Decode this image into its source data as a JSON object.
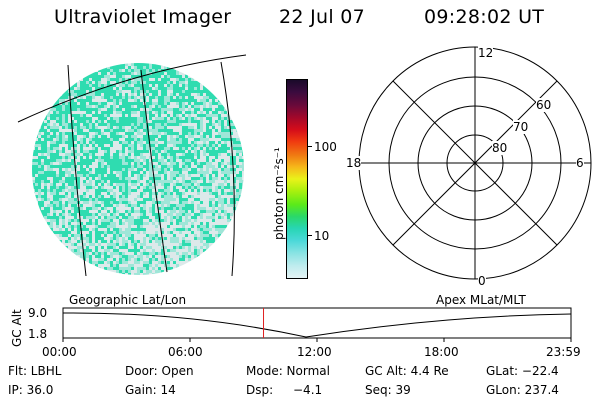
{
  "header": {
    "instrument": "Ultraviolet Imager",
    "date": "22 Jul 07",
    "time": "09:28:02 UT"
  },
  "image_panel": {
    "colors": {
      "dense": "#2fdcb0",
      "mid": "#9fe6d8",
      "light": "#dde9ea",
      "grid": "#000000"
    }
  },
  "colorbar": {
    "unit_label": "photon cm⁻²s⁻¹",
    "ticks": [
      "100",
      "10"
    ],
    "scale": "log",
    "colors": [
      "#1a0a2a",
      "#3a0b3e",
      "#6b0a3a",
      "#a3082a",
      "#d40c1a",
      "#f03a10",
      "#f07a12",
      "#f6b81a",
      "#eaf21a",
      "#aaf00e",
      "#5aea1a",
      "#2ad86a",
      "#28d6b4",
      "#4ad8d8",
      "#8ee4e4",
      "#c0ecee",
      "#e4f2f4"
    ]
  },
  "polar_plot": {
    "mlt_labels": {
      "top": "12",
      "right": "6",
      "bottom": "0",
      "left": "18"
    },
    "lat_labels": [
      "60",
      "70",
      "80"
    ]
  },
  "altitude_plot": {
    "title_left": "Geographic Lat/Lon",
    "title_right": "Apex MLat/MLT",
    "y_label": "GC Alt",
    "y_ticks": [
      "9.0",
      "1.8"
    ],
    "x_ticks": [
      "00:00",
      "06:00",
      "12:00",
      "18:00",
      "23:59"
    ],
    "marker_time": "09:28",
    "marker_color": "#e02020"
  },
  "info": {
    "row1": {
      "flt": "Flt: LBHL",
      "door": "Door: Open",
      "mode": "Mode: Normal",
      "gcalt": "GC Alt: 4.4 Re",
      "glat": "GLat: −22.4"
    },
    "row2": {
      "ip": "IP: 36.0",
      "gain": "Gain: 14",
      "dsp_label": "Dsp:",
      "dsp_value": "−4.1",
      "seq": "Seq: 39",
      "glon": "GLon: 237.4"
    }
  }
}
